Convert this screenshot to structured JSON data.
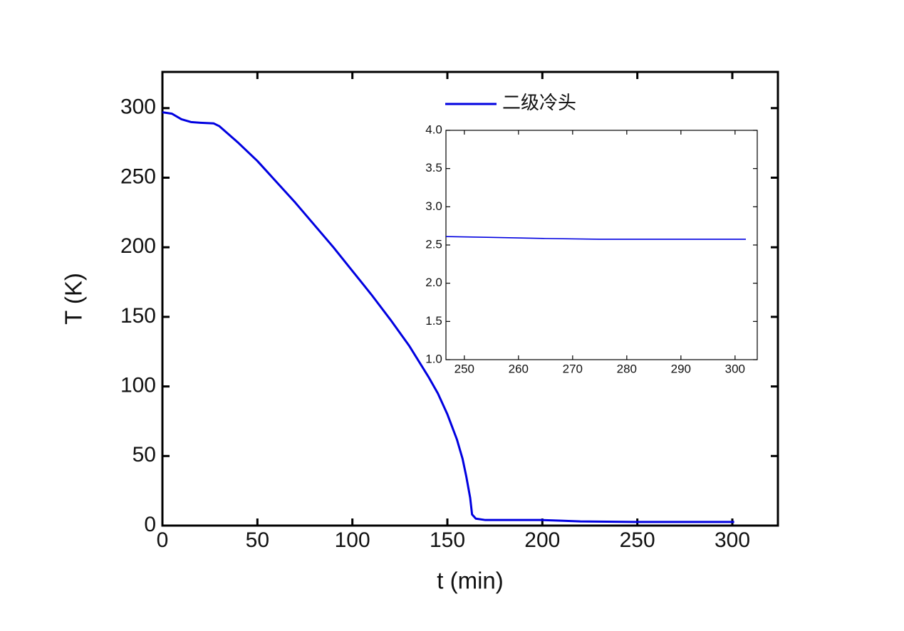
{
  "chart_data": [
    {
      "type": "line",
      "xlabel": "t (min)",
      "ylabel": "T (K)",
      "legend": "upper right",
      "x": [
        0,
        5,
        10,
        15,
        20,
        27,
        30,
        40,
        50,
        60,
        70,
        80,
        90,
        100,
        110,
        120,
        130,
        140,
        145,
        150,
        155,
        158,
        160,
        162,
        163,
        165,
        170,
        180,
        200,
        210,
        220,
        250,
        280,
        301
      ],
      "series": [
        {
          "name": "二级冷头",
          "color": "#0000e0",
          "values": [
            297,
            296,
            292,
            290,
            289.5,
            289,
            287,
            275,
            262,
            247,
            232,
            216,
            200,
            183,
            166,
            148,
            129,
            107,
            95,
            80,
            62,
            48,
            35,
            20,
            8,
            5,
            4,
            4,
            4,
            3.5,
            3,
            2.6,
            2.6,
            2.6
          ]
        }
      ],
      "xlim": [
        0,
        324
      ],
      "ylim": [
        0,
        326
      ],
      "xticks": [
        0,
        50,
        100,
        150,
        200,
        250,
        300
      ],
      "yticks": [
        0,
        50,
        100,
        150,
        200,
        250,
        300
      ]
    },
    {
      "type": "line",
      "x": [
        246.6,
        255,
        265,
        275,
        285,
        295,
        302
      ],
      "series": [
        {
          "color": "#0000e0",
          "values": [
            2.61,
            2.6,
            2.585,
            2.575,
            2.575,
            2.575,
            2.575
          ]
        }
      ],
      "xlim": [
        246.6,
        304.1
      ],
      "ylim": [
        1,
        4
      ],
      "xticks": [
        250,
        260,
        270,
        280,
        290,
        300
      ],
      "yticks": [
        {
          "value": 1,
          "label": "1.0"
        },
        {
          "value": 1.5,
          "label": "1.5"
        },
        {
          "value": 2,
          "label": "2.0"
        },
        {
          "value": 2.5,
          "label": "2.5"
        },
        {
          "value": 3,
          "label": "3.0"
        },
        {
          "value": 3.5,
          "label": "3.5"
        },
        {
          "value": 4,
          "label": "4.0"
        }
      ]
    }
  ]
}
